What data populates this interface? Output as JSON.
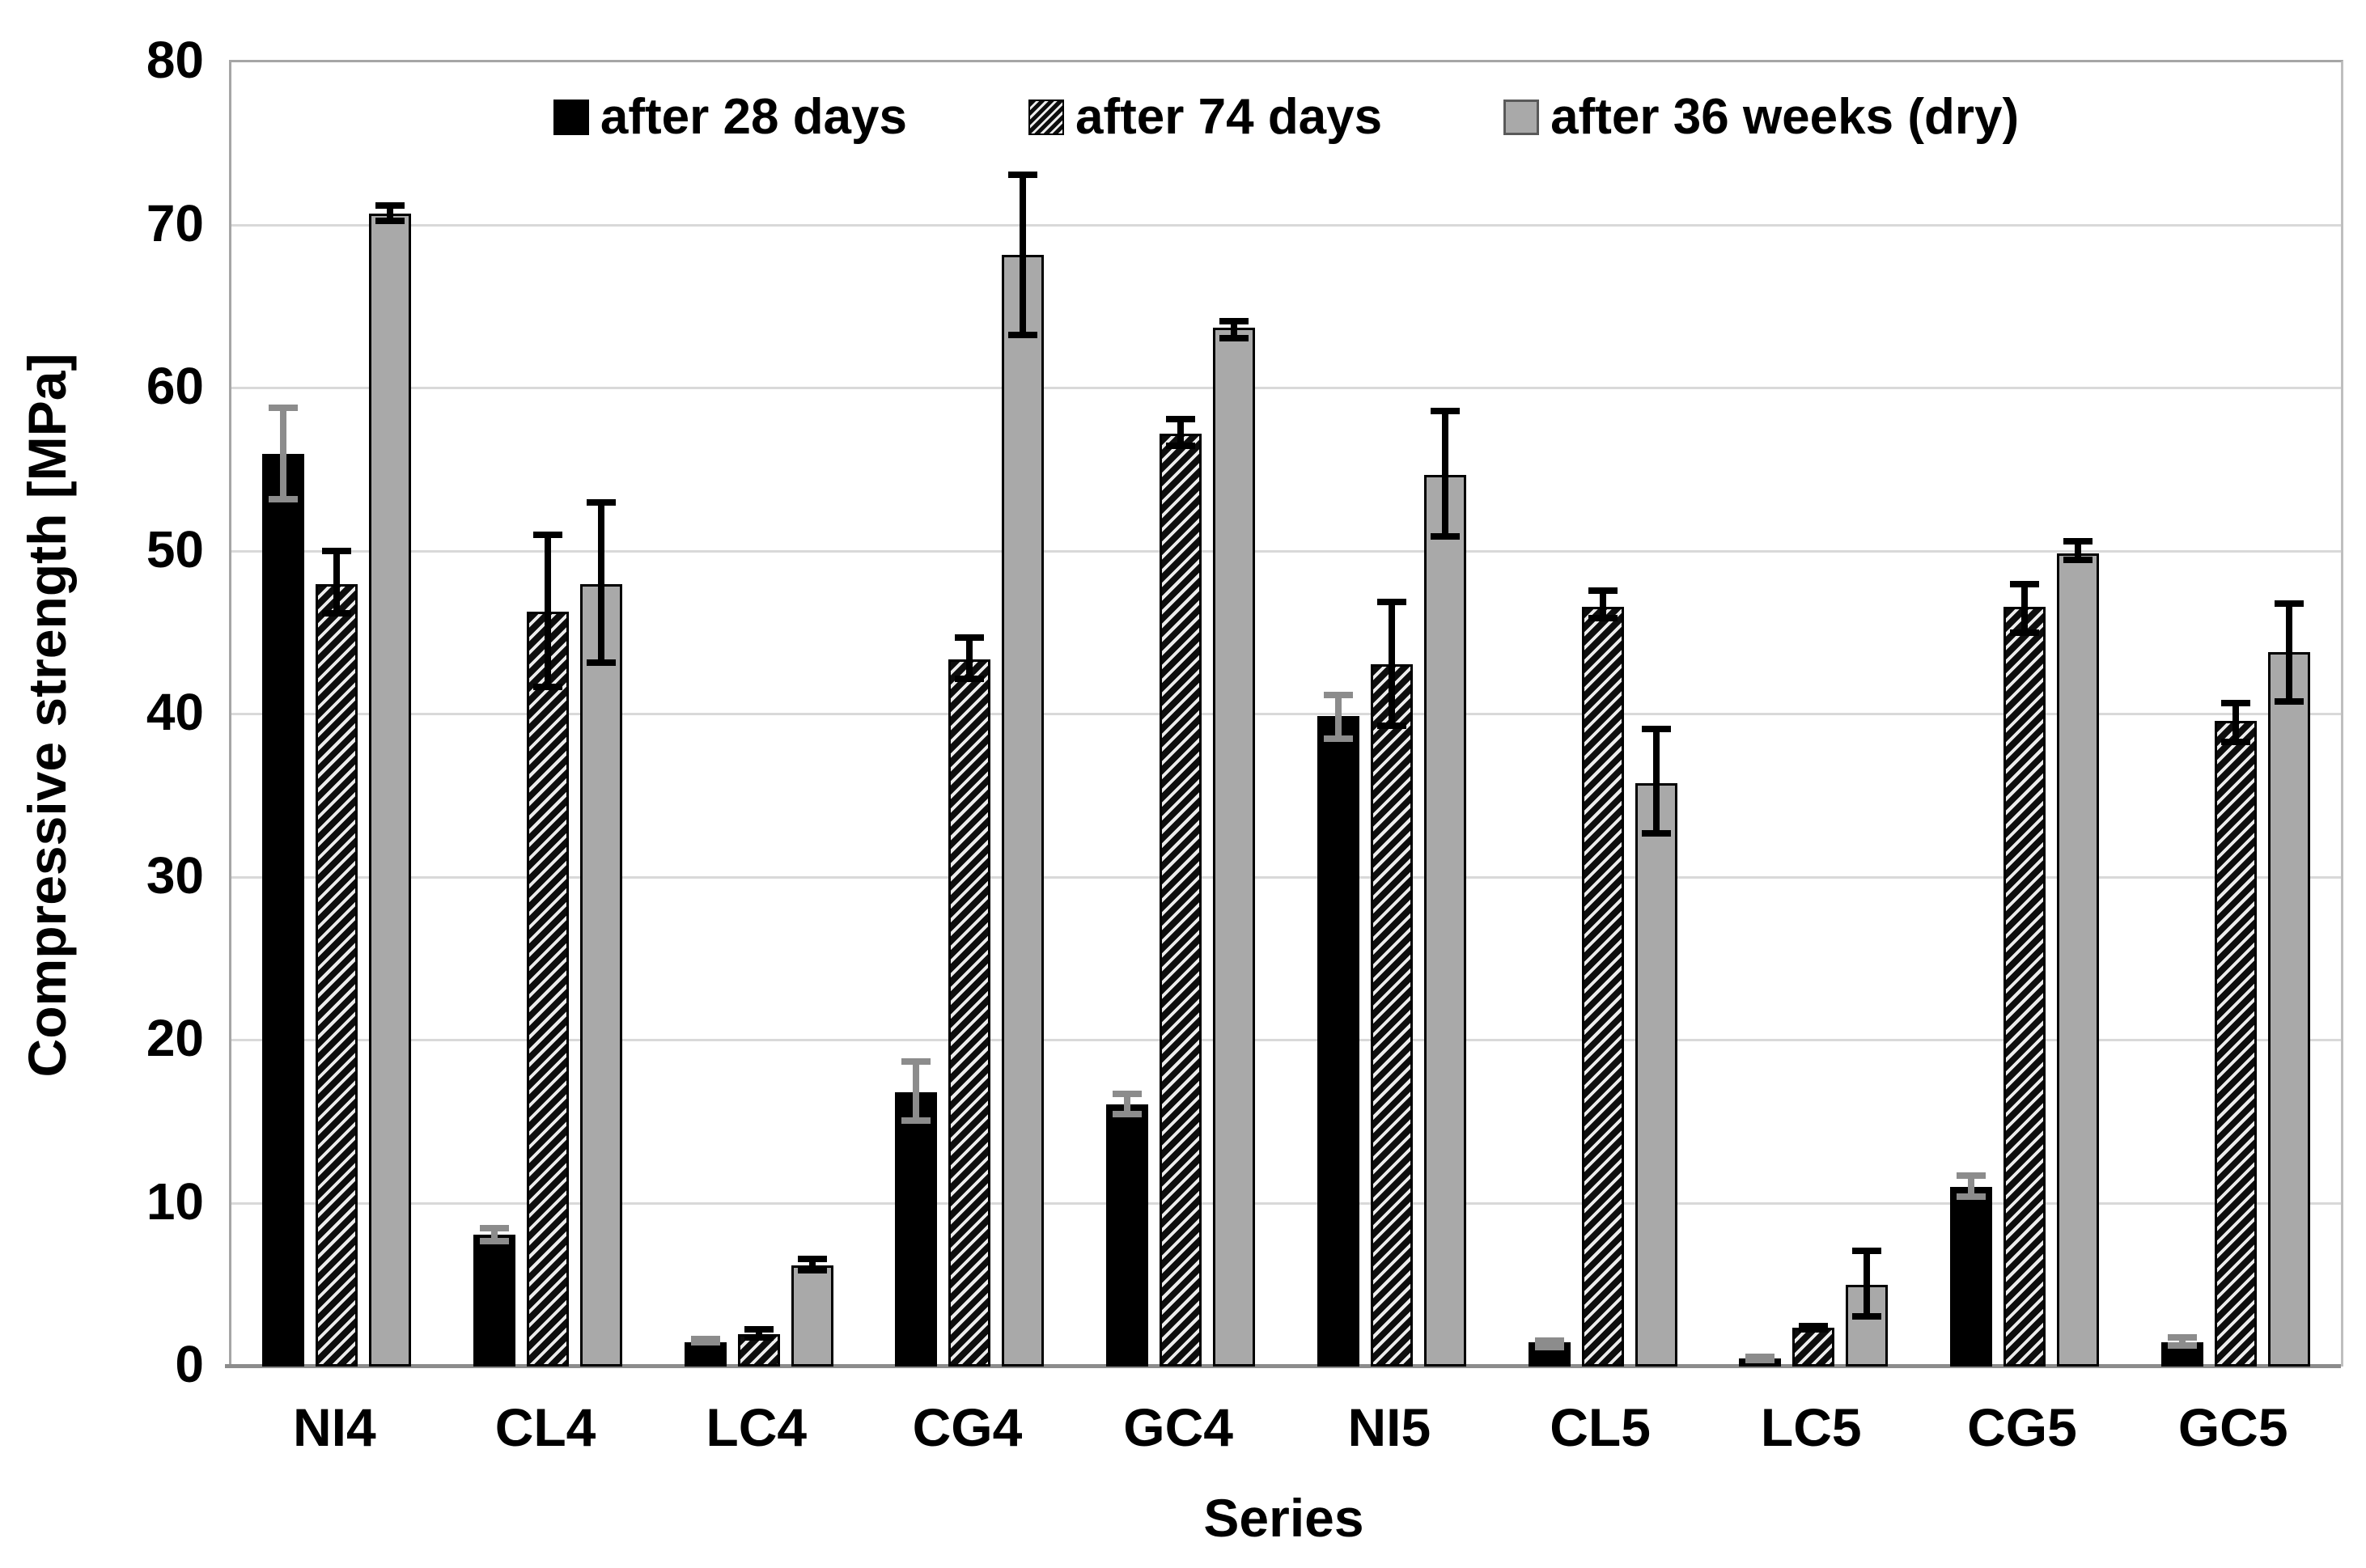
{
  "chart_data": {
    "type": "bar",
    "title": "",
    "xlabel": "Series",
    "ylabel": "Compressive strength [MPa]",
    "ylim": [
      0,
      80
    ],
    "ytick_step": 10,
    "yticks": [
      0,
      10,
      20,
      30,
      40,
      50,
      60,
      70,
      80
    ],
    "grid": "horizontal-only",
    "legend_position": "top-inside",
    "categories": [
      "NI4",
      "CL4",
      "LC4",
      "CG4",
      "GC4",
      "NI5",
      "CL5",
      "LC5",
      "CG5",
      "GC5"
    ],
    "series": [
      {
        "name": "after 28 days",
        "style": "solid-black",
        "error_color": "#8c8c8c",
        "values": [
          56.0,
          8.1,
          1.5,
          16.8,
          16.1,
          39.9,
          1.5,
          0.5,
          11.0,
          1.5
        ],
        "err_high": [
          59.0,
          8.7,
          1.9,
          18.9,
          16.9,
          41.4,
          1.8,
          0.8,
          11.9,
          2.0
        ],
        "err_low": [
          53.0,
          7.5,
          1.3,
          14.9,
          15.3,
          38.3,
          1.0,
          0.2,
          10.2,
          1.1
        ]
      },
      {
        "name": "after 74 days",
        "style": "hatched",
        "error_color": "#000000",
        "values": [
          48.0,
          46.3,
          2.0,
          43.4,
          57.2,
          43.1,
          46.6,
          2.4,
          46.6,
          39.6
        ],
        "err_high": [
          50.2,
          51.2,
          2.5,
          44.9,
          58.3,
          47.1,
          47.8,
          2.7,
          48.2,
          40.9
        ],
        "err_low": [
          46.0,
          41.5,
          1.6,
          42.0,
          56.3,
          39.1,
          45.7,
          2.1,
          44.8,
          38.1
        ]
      },
      {
        "name": "after 36 weeks (dry)",
        "style": "solid-gray",
        "error_color": "#000000",
        "values": [
          70.7,
          48.0,
          6.2,
          68.2,
          63.7,
          54.7,
          35.8,
          5.0,
          49.9,
          43.8
        ],
        "err_high": [
          71.4,
          53.2,
          6.8,
          73.3,
          64.3,
          58.8,
          39.3,
          7.3,
          50.8,
          47.0
        ],
        "err_low": [
          70.1,
          43.0,
          5.7,
          63.1,
          62.9,
          50.7,
          32.5,
          2.9,
          49.3,
          40.6
        ]
      }
    ],
    "colors": {
      "bar_black": "#000000",
      "bar_gray": "#a9a9a9",
      "bar_border": "#000000",
      "hatch_dark": "#0d0d0d",
      "hatch_light": "#ececec",
      "gridline": "#d9d9d9",
      "axis_line": "#8c8c8c",
      "plot_border": "#a6a6a6",
      "text": "#000000",
      "error_gray": "#8c8c8c",
      "error_black": "#000000"
    }
  }
}
